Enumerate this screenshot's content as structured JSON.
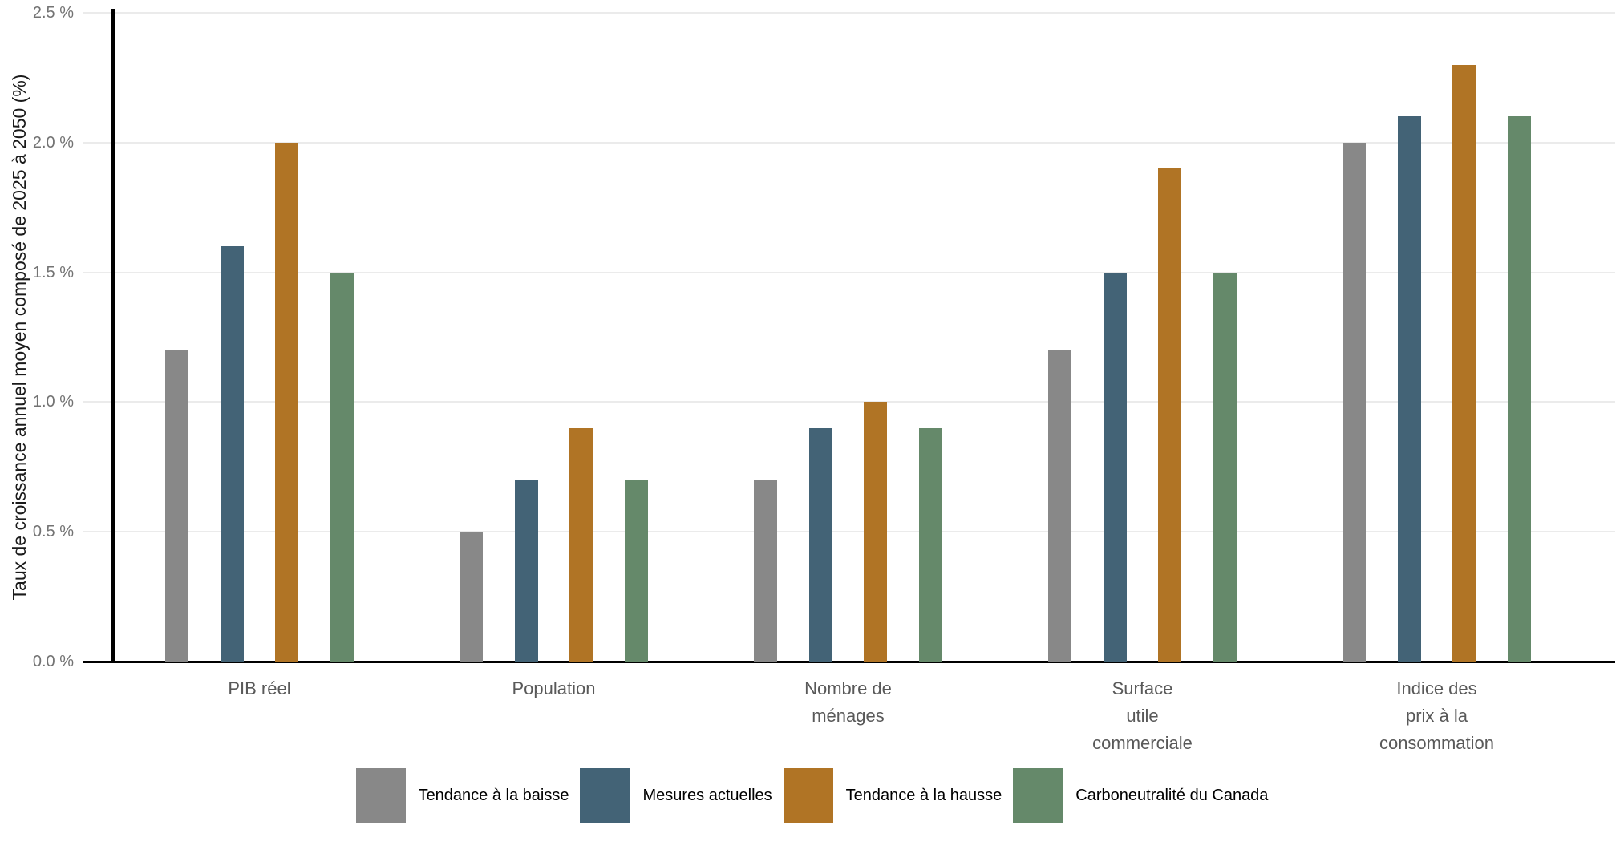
{
  "chart_data": {
    "type": "bar",
    "title": "",
    "xlabel": "",
    "ylabel": "Taux de croissance annuel moyen composé de 2025 à 2050 (%)",
    "ylim": [
      0,
      2.5
    ],
    "ytick_step": 0.5,
    "yticks": [
      0.0,
      0.5,
      1.0,
      1.5,
      2.0,
      2.5
    ],
    "ytick_labels": [
      "0.0 %",
      "0.5 %",
      "1.0 %",
      "1.5 %",
      "2.0 %",
      "2.5 %"
    ],
    "grid": "horizontal-only",
    "legend_position": "bottom",
    "categories": [
      "PIB réel",
      "Population",
      "Nombre de ménages",
      "Surface utile commerciale",
      "Indice des prix à la consommation"
    ],
    "category_label_lines": [
      [
        "PIB réel"
      ],
      [
        "Population"
      ],
      [
        "Nombre de",
        "ménages"
      ],
      [
        "Surface",
        "utile",
        "commerciale"
      ],
      [
        "Indice des",
        "prix à la",
        "consommation"
      ]
    ],
    "series": [
      {
        "name": "Tendance à la baisse",
        "color": "#888888",
        "values": [
          1.2,
          0.5,
          0.7,
          1.2,
          2.0
        ]
      },
      {
        "name": "Mesures actuelles",
        "color": "#436376",
        "values": [
          1.6,
          0.7,
          0.9,
          1.5,
          2.1
        ]
      },
      {
        "name": "Tendance à la hausse",
        "color": "#B07425",
        "values": [
          2.0,
          0.9,
          1.0,
          1.9,
          2.3
        ]
      },
      {
        "name": "Carboneutralité du Canada",
        "color": "#65896A",
        "values": [
          1.5,
          0.7,
          0.9,
          1.5,
          2.1
        ]
      }
    ],
    "colors": {
      "axis_line": "#000000",
      "gridline": "#ebebeb",
      "tick_label": "#737373",
      "category_label": "#595959",
      "y_title": "#1a1a1a",
      "legend_text": "#000000",
      "background": "#ffffff"
    }
  }
}
